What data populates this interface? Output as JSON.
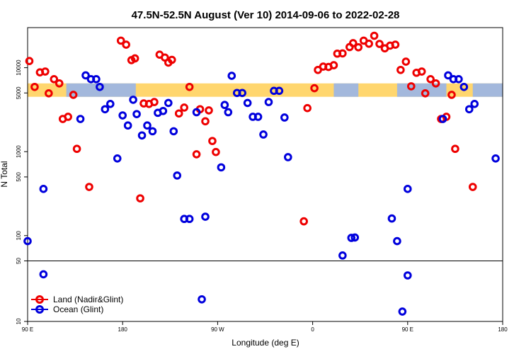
{
  "chart_data": {
    "type": "scatter",
    "title": "47.5N-52.5N August (Ver 10)   2014-09-06 to 2022-02-28",
    "xlabel": "Longitude (deg E)",
    "ylabel": "N Total",
    "xlim": [
      -90,
      180
    ],
    "x_ticks": [
      {
        "value": -90,
        "label": "90 E"
      },
      {
        "value": -36,
        "label": "180"
      },
      {
        "value": 18,
        "label": "90 W"
      },
      {
        "value": 72,
        "label": "0"
      },
      {
        "value": 126,
        "label": "90 E"
      },
      {
        "value": 180,
        "label": "180"
      }
    ],
    "y_scale": "log",
    "y_main_range": [
      50,
      30000
    ],
    "y_lower_range": [
      10,
      50
    ],
    "y_ticks": [
      10,
      50,
      100,
      500,
      1000,
      5000,
      10000
    ],
    "land_ocean_band": {
      "y_low": 4500,
      "y_high": 6500,
      "land_color": "#ffd66e",
      "ocean_color": "#a3b8dc"
    },
    "series": [
      {
        "name": "Land (Nadir&Glint)",
        "color": "#ee0000",
        "points": [
          [
            -89,
            12000
          ],
          [
            -86,
            5900
          ],
          [
            -83,
            8800
          ],
          [
            -80,
            9000
          ],
          [
            -78,
            4950
          ],
          [
            -75,
            7300
          ],
          [
            -72,
            6500
          ],
          [
            -70,
            2450
          ],
          [
            -67,
            2600
          ],
          [
            -64,
            4750
          ],
          [
            -62,
            1080
          ],
          [
            -55,
            380
          ],
          [
            -37,
            21000
          ],
          [
            -34,
            18800
          ],
          [
            -31,
            12300
          ],
          [
            -29,
            12900
          ],
          [
            -26,
            278
          ],
          [
            -24,
            3750
          ],
          [
            -21,
            3700
          ],
          [
            -18,
            3900
          ],
          [
            -15,
            14300
          ],
          [
            -12,
            13200
          ],
          [
            -10,
            11500
          ],
          [
            -8,
            12400
          ],
          [
            -4,
            2850
          ],
          [
            -1,
            3350
          ],
          [
            2,
            5900
          ],
          [
            6,
            930
          ],
          [
            8,
            3200
          ],
          [
            11,
            2300
          ],
          [
            13,
            3100
          ],
          [
            15,
            1340
          ],
          [
            17,
            990
          ],
          [
            67,
            148
          ],
          [
            69,
            3300
          ],
          [
            73,
            5700
          ],
          [
            75,
            9400
          ],
          [
            78,
            10300
          ],
          [
            81,
            10200
          ],
          [
            84,
            10700
          ],
          [
            86,
            14700
          ],
          [
            89,
            14800
          ],
          [
            93,
            17600
          ],
          [
            95,
            19600
          ],
          [
            98,
            17500
          ],
          [
            101,
            21000
          ],
          [
            104,
            19300
          ],
          [
            107,
            24000
          ],
          [
            110,
            19200
          ],
          [
            113,
            17000
          ],
          [
            116,
            18300
          ],
          [
            119,
            18800
          ],
          [
            122,
            9400
          ],
          [
            125,
            11800
          ],
          [
            128,
            6000
          ],
          [
            131,
            8700
          ],
          [
            134,
            9000
          ],
          [
            136,
            4950
          ],
          [
            139,
            7300
          ],
          [
            142,
            6500
          ],
          [
            145,
            2450
          ],
          [
            148,
            2600
          ],
          [
            151,
            4750
          ],
          [
            153,
            1080
          ],
          [
            163,
            380
          ]
        ]
      },
      {
        "name": "Ocean (Glint)",
        "color": "#0000dd",
        "points": [
          [
            -90,
            86
          ],
          [
            -81,
            35
          ],
          [
            -81,
            360
          ],
          [
            -60,
            2450
          ],
          [
            -57,
            8100
          ],
          [
            -54,
            7300
          ],
          [
            -51,
            7300
          ],
          [
            -49,
            5900
          ],
          [
            -46,
            3200
          ],
          [
            -43,
            3700
          ],
          [
            -39,
            830
          ],
          [
            -36,
            2700
          ],
          [
            -33,
            2050
          ],
          [
            -30,
            4150
          ],
          [
            -28,
            2800
          ],
          [
            -25,
            1560
          ],
          [
            -22,
            2050
          ],
          [
            -19,
            1750
          ],
          [
            -16,
            2900
          ],
          [
            -13,
            3050
          ],
          [
            -10,
            3800
          ],
          [
            -7,
            1750
          ],
          [
            -5,
            520
          ],
          [
            -1,
            158
          ],
          [
            2,
            158
          ],
          [
            6,
            2950
          ],
          [
            9,
            18
          ],
          [
            11,
            168
          ],
          [
            20,
            650
          ],
          [
            22,
            3600
          ],
          [
            24,
            2950
          ],
          [
            26,
            8000
          ],
          [
            29,
            5000
          ],
          [
            32,
            5000
          ],
          [
            35,
            3800
          ],
          [
            38,
            2600
          ],
          [
            41,
            2600
          ],
          [
            44,
            1600
          ],
          [
            47,
            3900
          ],
          [
            50,
            5300
          ],
          [
            53,
            5300
          ],
          [
            56,
            2550
          ],
          [
            58,
            860
          ],
          [
            89,
            58
          ],
          [
            94,
            94
          ],
          [
            96,
            95
          ],
          [
            117,
            160
          ],
          [
            120,
            86
          ],
          [
            123,
            13
          ],
          [
            126,
            34
          ],
          [
            126,
            360
          ],
          [
            146,
            2450
          ],
          [
            149,
            8100
          ],
          [
            152,
            7300
          ],
          [
            155,
            7300
          ],
          [
            158,
            5900
          ],
          [
            161,
            3200
          ],
          [
            164,
            3700
          ],
          [
            176,
            830
          ]
        ]
      }
    ],
    "legend": {
      "position": "bottom-left"
    }
  }
}
